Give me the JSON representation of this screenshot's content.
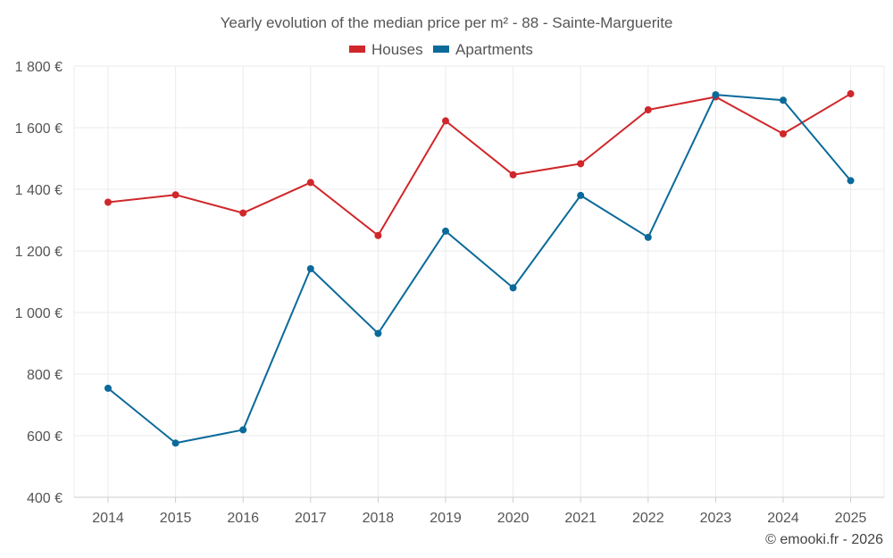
{
  "chart_data": {
    "type": "line",
    "title": "Yearly evolution of the median price per m² - 88 - Sainte-Marguerite",
    "categories": [
      "2014",
      "2015",
      "2016",
      "2017",
      "2018",
      "2019",
      "2020",
      "2021",
      "2022",
      "2023",
      "2024",
      "2025"
    ],
    "series": [
      {
        "name": "Houses",
        "color": "#d0272a",
        "values": [
          1358,
          1382,
          1323,
          1422,
          1250,
          1622,
          1447,
          1483,
          1658,
          1700,
          1580,
          1710
        ]
      },
      {
        "name": "Apartments",
        "color": "#0b6a9a",
        "values": [
          754,
          576,
          619,
          1142,
          932,
          1264,
          1080,
          1380,
          1244,
          1707,
          1689,
          1428
        ]
      }
    ],
    "ylim": [
      400,
      1800
    ],
    "yticks": [
      400,
      600,
      800,
      1000,
      1200,
      1400,
      1600,
      1800
    ],
    "ytick_labels": [
      "400 €",
      "600 €",
      "800 €",
      "1 000 €",
      "1 200 €",
      "1 400 €",
      "1 600 €",
      "1 800 €"
    ],
    "xlabel": "",
    "ylabel": "",
    "grid": true,
    "legend_position": "top-center"
  },
  "credit": "© emooki.fr - 2026"
}
